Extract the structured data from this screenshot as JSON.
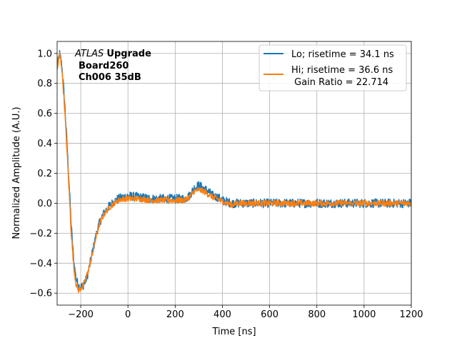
{
  "chart_data": {
    "type": "line",
    "xlabel": "Time [ns]",
    "ylabel": "Normalized Amplitude (A.U.)",
    "xlim": [
      -300,
      1200
    ],
    "ylim": [
      -0.68,
      1.08
    ],
    "xticks": [
      -200,
      0,
      200,
      400,
      600,
      800,
      1000,
      1200
    ],
    "xtick_labels": [
      "−200",
      "0",
      "200",
      "400",
      "600",
      "800",
      "1000",
      "1200"
    ],
    "yticks": [
      -0.6,
      -0.4,
      -0.2,
      0.0,
      0.2,
      0.4,
      0.6,
      0.8,
      1.0
    ],
    "ytick_labels": [
      "−0.6",
      "−0.4",
      "−0.2",
      "0.0",
      "0.2",
      "0.4",
      "0.6",
      "0.8",
      "1.0"
    ],
    "grid": true,
    "legend_position": "upper-right",
    "annotation": {
      "line1_italic": "ATLAS",
      "line1_bold": "Upgrade",
      "line2": "Board260",
      "line3": "Ch006 35dB"
    },
    "legend_extra": " Gain Ratio = 22.714",
    "series": [
      {
        "name": "Lo; risetime = 34.1 ns",
        "color": "#1f77b4",
        "noise": 0.03,
        "x": [
          -300,
          -290,
          -280,
          -270,
          -260,
          -250,
          -240,
          -230,
          -220,
          -210,
          -200,
          -190,
          -180,
          -170,
          -160,
          -150,
          -140,
          -130,
          -120,
          -110,
          -100,
          -80,
          -60,
          -40,
          -20,
          0,
          50,
          100,
          150,
          200,
          240,
          260,
          280,
          300,
          320,
          340,
          360,
          380,
          400,
          420,
          440,
          460,
          500,
          600,
          700,
          800,
          900,
          1000,
          1100,
          1200
        ],
        "y": [
          0.9,
          1.0,
          0.92,
          0.72,
          0.45,
          0.15,
          -0.15,
          -0.38,
          -0.5,
          -0.55,
          -0.56,
          -0.55,
          -0.52,
          -0.47,
          -0.4,
          -0.32,
          -0.25,
          -0.18,
          -0.13,
          -0.09,
          -0.06,
          -0.02,
          0.01,
          0.03,
          0.04,
          0.05,
          0.04,
          0.03,
          0.03,
          0.03,
          0.03,
          0.05,
          0.1,
          0.12,
          0.1,
          0.08,
          0.05,
          0.04,
          0.02,
          0.01,
          0.0,
          0.0,
          0.0,
          0.0,
          0.0,
          0.0,
          0.0,
          0.0,
          0.0,
          0.0
        ]
      },
      {
        "name": "Hi; risetime = 36.6 ns",
        "color": "#ff7f0e",
        "noise": 0.02,
        "x": [
          -300,
          -290,
          -280,
          -270,
          -260,
          -250,
          -240,
          -230,
          -220,
          -210,
          -200,
          -190,
          -180,
          -170,
          -160,
          -150,
          -140,
          -130,
          -120,
          -110,
          -100,
          -80,
          -60,
          -40,
          -20,
          0,
          50,
          100,
          150,
          200,
          240,
          260,
          280,
          300,
          320,
          340,
          360,
          380,
          400,
          420,
          440,
          460,
          500,
          600,
          700,
          800,
          900,
          1000,
          1100,
          1200
        ],
        "y": [
          0.88,
          1.0,
          0.9,
          0.68,
          0.4,
          0.1,
          -0.2,
          -0.42,
          -0.54,
          -0.58,
          -0.57,
          -0.55,
          -0.51,
          -0.46,
          -0.4,
          -0.33,
          -0.26,
          -0.19,
          -0.14,
          -0.1,
          -0.07,
          -0.03,
          0.0,
          0.02,
          0.03,
          0.03,
          0.03,
          0.02,
          0.02,
          0.02,
          0.02,
          0.04,
          0.08,
          0.09,
          0.08,
          0.06,
          0.04,
          0.03,
          0.01,
          0.0,
          -0.01,
          0.0,
          0.0,
          0.0,
          0.0,
          0.0,
          0.0,
          0.0,
          0.0,
          0.0
        ]
      }
    ]
  }
}
